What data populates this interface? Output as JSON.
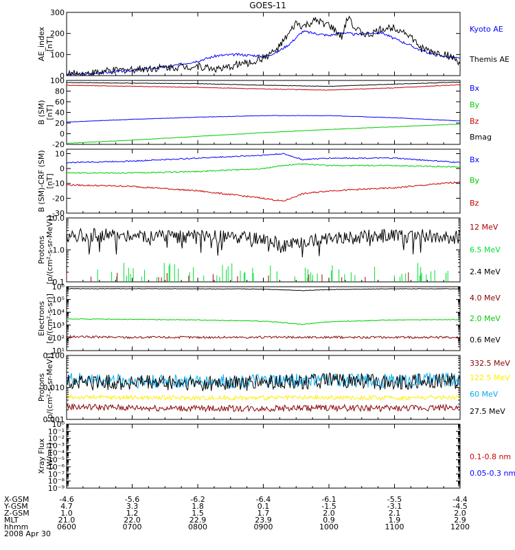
{
  "title": "GOES-11",
  "chart_data": [
    {
      "type": "line",
      "ylabel": "AE_index\n[nT]",
      "ylim": [
        0,
        300
      ],
      "yscale": "linear",
      "yticks": [
        0,
        100,
        200,
        300
      ],
      "tick_labels": [
        "0",
        "100",
        "200",
        "300"
      ],
      "xlim": [
        0,
        6
      ],
      "series": [
        {
          "name": "Kyoto AE",
          "color": "#0000ff",
          "x": [
            0,
            0.3,
            0.6,
            1.0,
            1.3,
            1.6,
            2.0,
            2.3,
            2.6,
            2.9,
            3.0,
            3.2,
            3.4,
            3.5,
            3.6,
            3.8,
            4.0,
            4.2,
            4.4,
            4.6,
            4.8,
            5.0,
            5.2,
            5.4,
            5.6,
            5.8,
            6.0
          ],
          "y": [
            5,
            8,
            15,
            25,
            35,
            45,
            70,
            95,
            100,
            95,
            90,
            110,
            150,
            180,
            210,
            200,
            190,
            205,
            195,
            200,
            205,
            175,
            150,
            120,
            100,
            90,
            80
          ]
        },
        {
          "name": "Themis AE",
          "color": "#000000",
          "x": [
            0,
            0.3,
            0.6,
            1.0,
            1.3,
            1.6,
            2.0,
            2.2,
            2.4,
            2.6,
            2.8,
            3.0,
            3.2,
            3.4,
            3.5,
            3.6,
            3.8,
            4.0,
            4.2,
            4.3,
            4.4,
            4.6,
            4.8,
            5.0,
            5.2,
            5.4,
            5.6,
            5.8,
            6.0
          ],
          "y": [
            8,
            10,
            20,
            30,
            35,
            40,
            45,
            35,
            30,
            55,
            60,
            85,
            120,
            200,
            250,
            230,
            260,
            240,
            180,
            290,
            220,
            190,
            220,
            230,
            200,
            130,
            110,
            100,
            60
          ]
        }
      ]
    },
    {
      "type": "line",
      "ylabel": "B (SM)\n[nT]",
      "ylim": [
        -20,
        100
      ],
      "yscale": "linear",
      "yticks": [
        -20,
        0,
        20,
        40,
        60,
        80,
        100
      ],
      "tick_labels": [
        "-20",
        "0",
        "20",
        "40",
        "60",
        "80",
        "100"
      ],
      "xlim": [
        0,
        6
      ],
      "series": [
        {
          "name": "Bx",
          "color": "#0000ff",
          "x": [
            0,
            1,
            2,
            3,
            4,
            5,
            6
          ],
          "y": [
            22,
            27,
            31,
            34,
            34,
            30,
            24
          ]
        },
        {
          "name": "By",
          "color": "#00cc00",
          "x": [
            0,
            1,
            2,
            3,
            4,
            5,
            6
          ],
          "y": [
            -18,
            -12,
            -5,
            2,
            8,
            13,
            18
          ]
        },
        {
          "name": "Bz",
          "color": "#cc0000",
          "x": [
            0,
            1,
            2,
            3,
            4,
            5,
            6
          ],
          "y": [
            91,
            89,
            87,
            84,
            82,
            86,
            92
          ]
        },
        {
          "name": "Bmag",
          "color": "#000000",
          "x": [
            0,
            1,
            2,
            3,
            4,
            5,
            6
          ],
          "y": [
            96,
            95,
            94,
            91,
            89,
            93,
            97
          ]
        }
      ]
    },
    {
      "type": "line",
      "ylabel": "B (SM)-CRF (SM)\n[nT]",
      "ylim": [
        -30,
        13
      ],
      "yscale": "linear",
      "yticks": [
        -30,
        -20,
        -10,
        0,
        10
      ],
      "tick_labels": [
        "-30",
        "-20",
        "-10",
        "0",
        "10"
      ],
      "xlim": [
        0,
        6
      ],
      "series": [
        {
          "name": "Bx",
          "color": "#0000ff",
          "x": [
            0,
            1,
            2,
            3,
            3.3,
            3.6,
            4,
            5,
            6
          ],
          "y": [
            4,
            5,
            7,
            9,
            10,
            6,
            7,
            7,
            4
          ]
        },
        {
          "name": "By",
          "color": "#00cc00",
          "x": [
            0,
            1,
            2,
            3,
            3.3,
            3.6,
            4,
            5,
            6
          ],
          "y": [
            -3,
            -3,
            -2,
            0,
            2,
            3,
            2,
            2,
            1
          ]
        },
        {
          "name": "Bz",
          "color": "#cc0000",
          "x": [
            0,
            1,
            2,
            3,
            3.3,
            3.6,
            4,
            5,
            6
          ],
          "y": [
            -11,
            -12,
            -15,
            -20,
            -22,
            -17,
            -15,
            -13,
            -9
          ]
        }
      ]
    },
    {
      "type": "line",
      "ylabel": "Protons\n[p/(cm²-s-sr-MeV)]",
      "ylim": [
        0.1,
        10
      ],
      "yscale": "log",
      "yticks": [
        0.1,
        1,
        10
      ],
      "tick_labels": [
        "0.1",
        "1.0",
        "10.0"
      ],
      "xlim": [
        0,
        6
      ],
      "series": [
        {
          "name": "12 MeV",
          "color": "#aa0000",
          "x": [
            0.5,
            1.3,
            2.3,
            3.2,
            4.0,
            4.6,
            5.6
          ],
          "y": [
            0.12,
            0.11,
            0.12,
            0.11,
            0.12,
            0.11,
            0.12
          ]
        },
        {
          "name": "6.5 MeV",
          "color": "#00dd33",
          "x": [
            0,
            1,
            2,
            3,
            4,
            5,
            6
          ],
          "y": [
            0.15,
            0.14,
            0.15,
            0.14,
            0.15,
            0.14,
            0.15
          ]
        },
        {
          "name": "2.4 MeV",
          "color": "#000000",
          "x": [
            0,
            1,
            2,
            3,
            3.3,
            4,
            5,
            6
          ],
          "y": [
            3.0,
            2.8,
            2.6,
            2.2,
            1.2,
            2.5,
            2.8,
            2.5
          ]
        }
      ]
    },
    {
      "type": "line",
      "ylabel": "Electrons\n[e/(cm²-s-sr)]",
      "ylim": [
        10,
        1000000
      ],
      "yscale": "log",
      "yticks": [
        10,
        100,
        1000,
        10000,
        100000,
        1000000
      ],
      "tick_labels": [
        "10¹",
        "10²",
        "10³",
        "10⁴",
        "10⁵",
        "10⁶"
      ],
      "xlim": [
        0,
        6
      ],
      "series": [
        {
          "name": "4.0 MeV",
          "color": "#880000",
          "x": [
            0,
            1,
            2,
            3,
            4,
            5,
            6
          ],
          "y": [
            120,
            110,
            110,
            110,
            110,
            110,
            110
          ]
        },
        {
          "name": "2.0 MeV",
          "color": "#00cc00",
          "x": [
            0,
            1,
            2,
            3,
            3.6,
            4,
            5,
            6
          ],
          "y": [
            3000,
            2800,
            2500,
            2000,
            1100,
            1800,
            2500,
            2700
          ]
        },
        {
          "name": "0.6 MeV",
          "color": "#000000",
          "x": [
            0,
            1,
            2,
            3,
            3.6,
            4,
            5,
            6
          ],
          "y": [
            700000,
            700000,
            680000,
            650000,
            500000,
            600000,
            680000,
            700000
          ]
        }
      ]
    },
    {
      "type": "line",
      "ylabel": "Protons\n[p/(cm²-s-sr-MeV)]",
      "ylim": [
        0.001,
        0.1
      ],
      "yscale": "log",
      "yticks": [
        0.001,
        0.01,
        0.1
      ],
      "tick_labels": [
        "0.001",
        "0.010",
        "0.100"
      ],
      "xlim": [
        0,
        6
      ],
      "series": [
        {
          "name": "332.5 MeV",
          "color": "#880000",
          "x": [
            0,
            1,
            2,
            3,
            4,
            5,
            6
          ],
          "y": [
            0.0025,
            0.0023,
            0.0022,
            0.0022,
            0.0023,
            0.0022,
            0.0024
          ]
        },
        {
          "name": "122.5 MeV",
          "color": "#ffee00",
          "x": [
            0,
            1,
            2,
            3,
            4,
            5,
            6
          ],
          "y": [
            0.005,
            0.0048,
            0.0047,
            0.0047,
            0.0048,
            0.0047,
            0.005
          ]
        },
        {
          "name": "60 MeV",
          "color": "#00aaee",
          "x": [
            0,
            1,
            2,
            3,
            4,
            5,
            6
          ],
          "y": [
            0.018,
            0.016,
            0.015,
            0.016,
            0.017,
            0.016,
            0.018
          ]
        },
        {
          "name": "27.5 MeV",
          "color": "#000000",
          "x": [
            0,
            1,
            2,
            3,
            4,
            5,
            6
          ],
          "y": [
            0.015,
            0.014,
            0.013,
            0.014,
            0.016,
            0.015,
            0.016
          ]
        }
      ]
    },
    {
      "type": "line",
      "ylabel": "Xray Flux\n[W/m²]",
      "ylim": [
        1e-09,
        1
      ],
      "yscale": "log",
      "yticks": [
        1e-09,
        1e-08,
        1e-07,
        1e-06,
        1e-05,
        0.0001,
        0.001,
        0.01,
        0.1,
        1
      ],
      "tick_labels": [
        "10⁻⁹",
        "10⁻⁸",
        "10⁻⁷",
        "10⁻⁶",
        "10⁻⁵",
        "10⁻⁴",
        "10⁻³",
        "10⁻²",
        "10⁻¹",
        "10⁰"
      ],
      "xlim": [
        0,
        6
      ],
      "series": [
        {
          "name": "0.1-0.8 nm",
          "color": "#cc0000",
          "x": [],
          "y": []
        },
        {
          "name": "0.05-0.3 nm",
          "color": "#0000ff",
          "x": [],
          "y": []
        }
      ]
    }
  ],
  "axis_table": {
    "rows": [
      {
        "label": "X-GSM",
        "values": [
          "-4.6",
          "-5.6",
          "-6.2",
          "-6.4",
          "-6.1",
          "-5.5",
          "-4.4"
        ]
      },
      {
        "label": "Y-GSM",
        "values": [
          "4.7",
          "3.3",
          "1.8",
          "0.1",
          "-1.5",
          "-3.1",
          "-4.5"
        ]
      },
      {
        "label": "Z-GSM",
        "values": [
          "1.0",
          "1.2",
          "1.5",
          "1.7",
          "2.0",
          "2.1",
          "2.0"
        ]
      },
      {
        "label": "MLT",
        "values": [
          "21.0",
          "22.0",
          "22.9",
          "23.9",
          "0.9",
          "1.9",
          "2.9"
        ]
      },
      {
        "label": "hhmm",
        "values": [
          "0600",
          "0700",
          "0800",
          "0900",
          "1000",
          "1100",
          "1200"
        ]
      }
    ],
    "date": "2008 Apr 30"
  }
}
